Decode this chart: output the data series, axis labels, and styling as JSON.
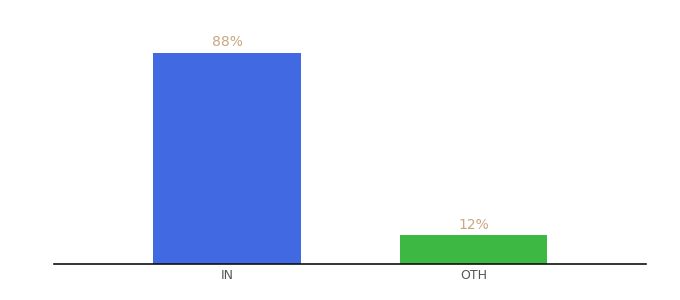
{
  "categories": [
    "IN",
    "OTH"
  ],
  "values": [
    88,
    12
  ],
  "bar_colors": [
    "#4169e1",
    "#3cb843"
  ],
  "label_color": "#c8a882",
  "label_texts": [
    "88%",
    "12%"
  ],
  "background_color": "#ffffff",
  "bar_width": 0.6,
  "xlim": [
    -0.2,
    2.2
  ],
  "ylim": [
    0,
    100
  ],
  "label_fontsize": 10,
  "tick_fontsize": 9,
  "spine_color": "#111111",
  "x_positions": [
    0.5,
    1.5
  ]
}
